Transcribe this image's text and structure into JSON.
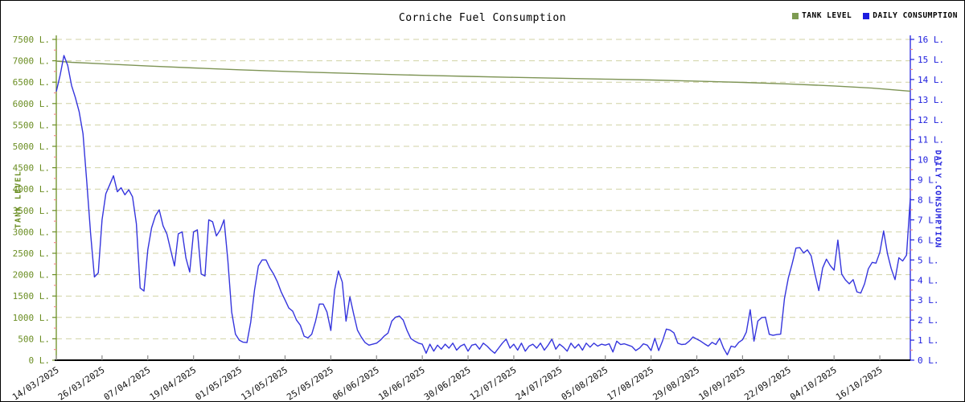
{
  "title": "Corniche Fuel Consumption",
  "legend": [
    {
      "label": "TANK LEVEL",
      "color": "#7D9B51"
    },
    {
      "label": "DAILY CONSUMPTION",
      "color": "#1C1CE0"
    }
  ],
  "chart_data": {
    "type": "line",
    "title": "Corniche Fuel Consumption",
    "grid": "on",
    "legend_position": "top-right",
    "x_tick_labels": [
      "14/03/2025",
      "26/03/2025",
      "07/04/2025",
      "19/04/2025",
      "01/05/2025",
      "13/05/2025",
      "25/05/2025",
      "06/06/2025",
      "18/06/2025",
      "30/06/2025",
      "12/07/2025",
      "24/07/2025",
      "05/08/2025",
      "17/08/2025",
      "29/08/2025",
      "10/09/2025",
      "22/09/2025",
      "04/10/2025",
      "16/10/2025"
    ],
    "x_tick_step_days": 12,
    "left_axis": {
      "label": "TANK LEVEL",
      "min": 0,
      "max": 7500,
      "step": 500,
      "unit": "L.",
      "color": "#6B8E23"
    },
    "right_axis": {
      "label": "DAILY CONSUMPTION",
      "min": 0,
      "max": 16,
      "step": 1,
      "unit": "L.",
      "color": "#2121DE"
    },
    "colors": {
      "grid": "#D0D2A4",
      "minor_tick": "#F08A8A",
      "x_axis": "#000000",
      "x_tick": "#8A8A8A",
      "x_label": "#111111",
      "tank_line": "#7E9455",
      "consumption_line": "#3535DD"
    },
    "series": [
      {
        "name": "TANK LEVEL",
        "axis": "left",
        "points_day_value": [
          [
            0,
            6990
          ],
          [
            4,
            6965
          ],
          [
            12,
            6930
          ],
          [
            24,
            6878
          ],
          [
            36,
            6832
          ],
          [
            48,
            6790
          ],
          [
            60,
            6752
          ],
          [
            72,
            6718
          ],
          [
            84,
            6688
          ],
          [
            96,
            6660
          ],
          [
            108,
            6635
          ],
          [
            120,
            6612
          ],
          [
            132,
            6592
          ],
          [
            144,
            6572
          ],
          [
            156,
            6550
          ],
          [
            168,
            6525
          ],
          [
            180,
            6495
          ],
          [
            192,
            6458
          ],
          [
            204,
            6412
          ],
          [
            214,
            6360
          ],
          [
            224,
            6290
          ]
        ]
      },
      {
        "name": "DAILY CONSUMPTION",
        "axis": "right",
        "start_date": "14/03/2025",
        "interval_days": 1,
        "values": [
          13.4,
          14.2,
          15.2,
          14.7,
          13.7,
          13.1,
          12.4,
          11.3,
          8.9,
          6.3,
          4.15,
          4.35,
          7.0,
          8.3,
          8.75,
          9.2,
          8.4,
          8.6,
          8.25,
          8.5,
          8.15,
          6.8,
          3.6,
          3.45,
          5.5,
          6.6,
          7.2,
          7.5,
          6.7,
          6.3,
          5.5,
          4.7,
          6.3,
          6.4,
          5.1,
          4.4,
          6.4,
          6.5,
          4.3,
          4.2,
          7.0,
          6.9,
          6.2,
          6.5,
          7.0,
          5.0,
          2.4,
          1.3,
          1.0,
          0.9,
          0.88,
          1.9,
          3.5,
          4.7,
          5.0,
          5.0,
          4.6,
          4.3,
          3.9,
          3.4,
          3.0,
          2.6,
          2.45,
          2.0,
          1.75,
          1.2,
          1.11,
          1.3,
          1.95,
          2.8,
          2.8,
          2.4,
          1.48,
          3.5,
          4.45,
          3.9,
          1.95,
          3.16,
          2.3,
          1.5,
          1.15,
          0.88,
          0.75,
          0.8,
          0.85,
          1.0,
          1.2,
          1.35,
          1.95,
          2.15,
          2.2,
          2.0,
          1.48,
          1.08,
          0.95,
          0.85,
          0.8,
          0.35,
          0.8,
          0.45,
          0.75,
          0.55,
          0.8,
          0.6,
          0.85,
          0.5,
          0.7,
          0.8,
          0.45,
          0.75,
          0.8,
          0.55,
          0.85,
          0.7,
          0.5,
          0.35,
          0.6,
          0.85,
          1.05,
          0.6,
          0.8,
          0.5,
          0.85,
          0.45,
          0.7,
          0.8,
          0.6,
          0.85,
          0.5,
          0.75,
          1.05,
          0.55,
          0.8,
          0.65,
          0.45,
          0.85,
          0.6,
          0.8,
          0.5,
          0.85,
          0.65,
          0.85,
          0.7,
          0.8,
          0.75,
          0.82,
          0.41,
          0.95,
          0.78,
          0.82,
          0.75,
          0.68,
          0.48,
          0.61,
          0.82,
          0.75,
          0.48,
          1.09,
          0.48,
          0.95,
          1.55,
          1.5,
          1.36,
          0.85,
          0.78,
          0.8,
          0.95,
          1.16,
          1.05,
          0.95,
          0.82,
          0.7,
          0.89,
          0.78,
          1.09,
          0.6,
          0.27,
          0.7,
          0.65,
          0.89,
          1.02,
          1.4,
          2.52,
          0.95,
          1.95,
          2.12,
          2.15,
          1.29,
          1.24,
          1.28,
          1.3,
          3.07,
          4.1,
          4.8,
          5.59,
          5.62,
          5.35,
          5.5,
          5.2,
          4.29,
          3.47,
          4.6,
          5.04,
          4.72,
          4.49,
          5.99,
          4.29,
          4.0,
          3.81,
          4.02,
          3.41,
          3.35,
          3.81,
          4.56,
          4.88,
          4.84,
          5.38,
          6.45,
          5.31,
          4.56,
          4.02,
          5.11,
          4.95,
          5.24,
          8.1
        ]
      }
    ]
  }
}
